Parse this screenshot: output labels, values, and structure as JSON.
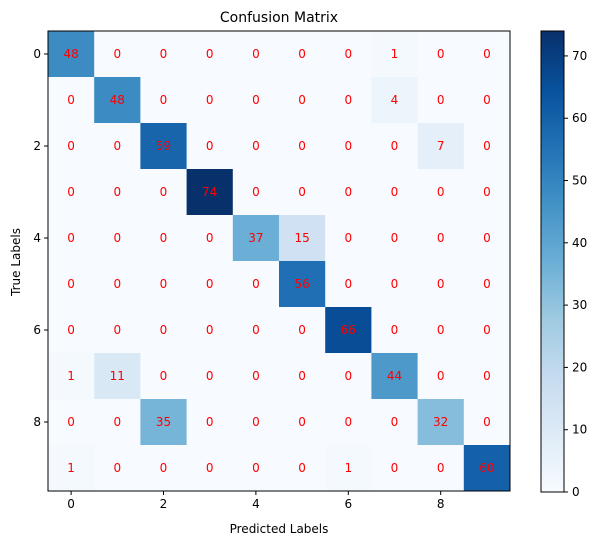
{
  "chart_data": {
    "type": "heatmap",
    "title": "Confusion Matrix",
    "xlabel": "Predicted Labels",
    "ylabel": "True Labels",
    "x_tick_labels": [
      "0",
      "2",
      "4",
      "6",
      "8"
    ],
    "x_tick_indices": [
      0,
      2,
      4,
      6,
      8
    ],
    "y_tick_labels": [
      "0",
      "2",
      "4",
      "6",
      "8"
    ],
    "y_tick_indices": [
      0,
      2,
      4,
      6,
      8
    ],
    "matrix": [
      [
        48,
        0,
        0,
        0,
        0,
        0,
        0,
        1,
        0,
        0
      ],
      [
        0,
        48,
        0,
        0,
        0,
        0,
        0,
        4,
        0,
        0
      ],
      [
        0,
        0,
        59,
        0,
        0,
        0,
        0,
        0,
        7,
        0
      ],
      [
        0,
        0,
        0,
        74,
        0,
        0,
        0,
        0,
        0,
        0
      ],
      [
        0,
        0,
        0,
        0,
        37,
        15,
        0,
        0,
        0,
        0
      ],
      [
        0,
        0,
        0,
        0,
        0,
        56,
        0,
        0,
        0,
        0
      ],
      [
        0,
        0,
        0,
        0,
        0,
        0,
        66,
        0,
        0,
        0
      ],
      [
        1,
        11,
        0,
        0,
        0,
        0,
        0,
        44,
        0,
        0
      ],
      [
        0,
        0,
        35,
        0,
        0,
        0,
        0,
        0,
        32,
        0
      ],
      [
        1,
        0,
        0,
        0,
        0,
        0,
        1,
        0,
        0,
        60
      ]
    ],
    "colormap": "Blues",
    "value_range": [
      0,
      74
    ],
    "colorbar_ticks": [
      0,
      10,
      20,
      30,
      40,
      50,
      60,
      70
    ],
    "colorbar_tick_labels": [
      "0",
      "10",
      "20",
      "30",
      "40",
      "50",
      "60",
      "70"
    ],
    "cell_label_color": "#ff0000",
    "grid": false,
    "colorbar_position": "right"
  }
}
